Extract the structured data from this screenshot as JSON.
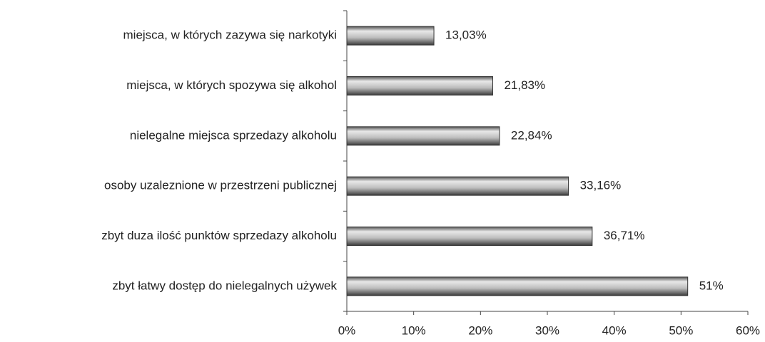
{
  "chart_data": {
    "type": "bar",
    "orientation": "horizontal",
    "categories": [
      "miejsca, w których zazywa się narkotyki",
      "miejsca, w których spozywa się alkohol",
      "nielegalne miejsca sprzedazy alkoholu",
      "osoby uzaleznione w przestrzeni publicznej",
      "zbyt duza ilość punktów sprzedazy alkoholu",
      "zbyt łatwy dostęp do nielegalnych używek"
    ],
    "values": [
      13.03,
      21.83,
      22.84,
      33.16,
      36.71,
      51
    ],
    "value_labels": [
      "13,03%",
      "21,83%",
      "22,84%",
      "33,16%",
      "36,71%",
      "51%"
    ],
    "color": "#8a8a8a",
    "xlim": [
      0,
      60
    ],
    "xticks": [
      {
        "value": 0,
        "label": "0%"
      },
      {
        "value": 10,
        "label": "10%"
      },
      {
        "value": 20,
        "label": "20%"
      },
      {
        "value": 30,
        "label": "30%"
      },
      {
        "value": 40,
        "label": "40%"
      },
      {
        "value": 50,
        "label": "50%"
      },
      {
        "value": 60,
        "label": "60%"
      }
    ]
  }
}
